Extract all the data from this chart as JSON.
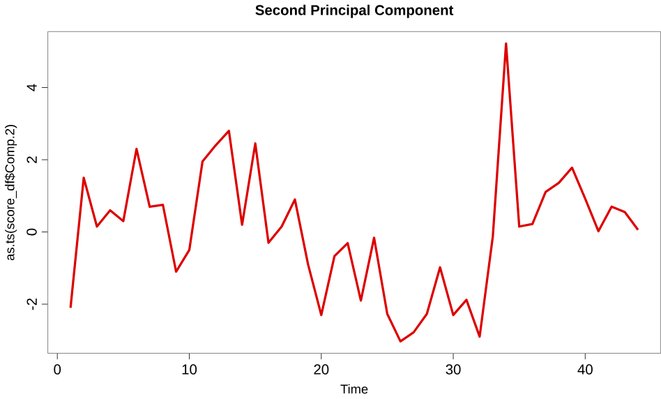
{
  "chart_data": {
    "type": "line",
    "title": "Second Principal Component",
    "xlabel": "Time",
    "ylabel": "as.ts(score_df$Comp.2)",
    "x": [
      1,
      2,
      3,
      4,
      5,
      6,
      7,
      8,
      9,
      10,
      11,
      12,
      13,
      14,
      15,
      16,
      17,
      18,
      19,
      20,
      21,
      22,
      23,
      24,
      25,
      26,
      27,
      28,
      29,
      30,
      31,
      32,
      33,
      34,
      35,
      36,
      37,
      38,
      39,
      40,
      41,
      42,
      43,
      44
    ],
    "series": [
      {
        "color": "#dd0000",
        "values": [
          -2.1,
          1.5,
          0.15,
          0.6,
          0.3,
          2.3,
          0.7,
          0.75,
          -1.1,
          -0.5,
          1.95,
          2.4,
          2.8,
          0.2,
          2.45,
          -0.3,
          0.15,
          0.9,
          -0.9,
          -2.3,
          -0.67,
          -0.31,
          -1.9,
          -0.16,
          -2.27,
          -3.03,
          -2.78,
          -2.27,
          -0.98,
          -2.3,
          -1.88,
          -2.9,
          -0.12,
          5.22,
          0.15,
          0.22,
          1.11,
          1.36,
          1.78,
          0.92,
          0.02,
          0.7,
          0.55,
          0.06
        ]
      }
    ],
    "xlim": [
      -0.72,
      45.72
    ],
    "ylim": [
      -3.36,
      5.55
    ],
    "xticks": [
      0,
      10,
      20,
      30,
      40
    ],
    "yticks": [
      -2,
      0,
      2,
      4
    ],
    "grid": false,
    "marker": "none",
    "line_style": "solid"
  }
}
